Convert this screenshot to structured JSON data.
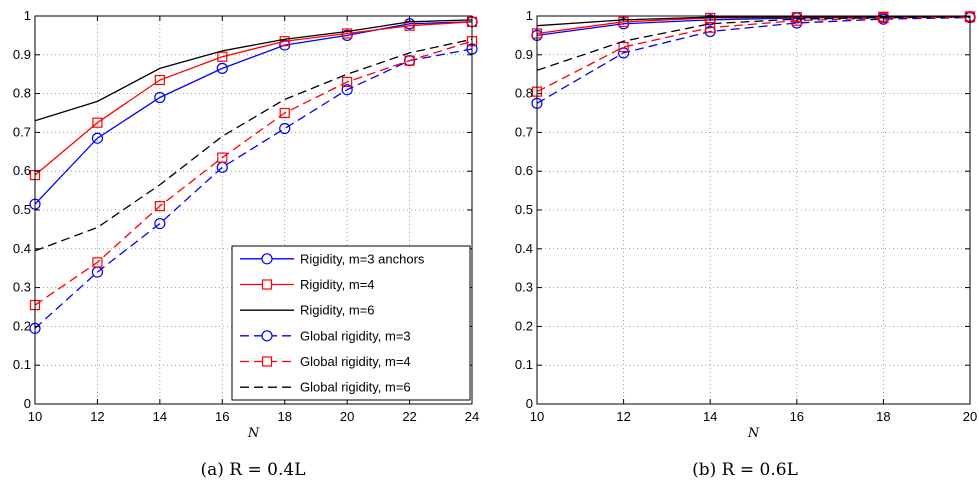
{
  "chart_data": [
    {
      "type": "line",
      "caption": "(a)  R = 0.4L",
      "xlabel": "N",
      "ylabel": "",
      "xlim": [
        10,
        24
      ],
      "ylim": [
        0,
        1
      ],
      "xticks": [
        10,
        12,
        14,
        16,
        18,
        20,
        22,
        24
      ],
      "yticks": [
        0,
        0.1,
        0.2,
        0.3,
        0.4,
        0.5,
        0.6,
        0.7,
        0.8,
        0.9,
        1
      ],
      "grid": true,
      "legend": "bottom-right",
      "x": [
        10,
        12,
        14,
        16,
        18,
        20,
        22,
        24
      ],
      "series": [
        {
          "name": "Rigidity, m=3 anchors",
          "color": "#0000ff",
          "dash": "solid",
          "marker": "circle",
          "values": [
            0.515,
            0.685,
            0.79,
            0.865,
            0.925,
            0.95,
            0.98,
            0.985
          ]
        },
        {
          "name": "Rigidity, m=4",
          "color": "#ff0000",
          "dash": "solid",
          "marker": "square",
          "values": [
            0.59,
            0.725,
            0.835,
            0.895,
            0.935,
            0.955,
            0.975,
            0.985
          ]
        },
        {
          "name": "Rigidity, m=6",
          "color": "#000000",
          "dash": "solid",
          "marker": "none",
          "values": [
            0.73,
            0.78,
            0.865,
            0.91,
            0.94,
            0.96,
            0.985,
            0.99
          ]
        },
        {
          "name": "Global rigidity, m=3",
          "color": "#0000ff",
          "dash": "dashed",
          "marker": "circle",
          "values": [
            0.195,
            0.34,
            0.465,
            0.61,
            0.71,
            0.81,
            0.885,
            0.915
          ]
        },
        {
          "name": "Global rigidity, m=4",
          "color": "#ff0000",
          "dash": "dashed",
          "marker": "square",
          "values": [
            0.255,
            0.365,
            0.51,
            0.635,
            0.75,
            0.83,
            0.885,
            0.935
          ]
        },
        {
          "name": "Global rigidity, m=6",
          "color": "#000000",
          "dash": "dashed",
          "marker": "none",
          "values": [
            0.395,
            0.455,
            0.565,
            0.69,
            0.785,
            0.85,
            0.905,
            0.94
          ]
        }
      ]
    },
    {
      "type": "line",
      "caption": "(b)  R = 0.6L",
      "xlabel": "N",
      "ylabel": "",
      "xlim": [
        10,
        20
      ],
      "ylim": [
        0,
        1
      ],
      "xticks": [
        10,
        12,
        14,
        16,
        18,
        20
      ],
      "yticks": [
        0,
        0.1,
        0.2,
        0.3,
        0.4,
        0.5,
        0.6,
        0.7,
        0.8,
        0.9,
        1
      ],
      "grid": true,
      "legend": "none",
      "x": [
        10,
        12,
        14,
        16,
        18,
        20
      ],
      "series": [
        {
          "name": "Rigidity, m=3 anchors",
          "color": "#0000ff",
          "dash": "solid",
          "marker": "circle",
          "values": [
            0.95,
            0.98,
            0.99,
            0.995,
            0.997,
            0.998
          ]
        },
        {
          "name": "Rigidity, m=4",
          "color": "#ff0000",
          "dash": "solid",
          "marker": "square",
          "values": [
            0.955,
            0.985,
            0.995,
            0.997,
            0.998,
            0.999
          ]
        },
        {
          "name": "Rigidity, m=6",
          "color": "#000000",
          "dash": "solid",
          "marker": "none",
          "values": [
            0.975,
            0.99,
            0.997,
            0.998,
            0.999,
            0.999
          ]
        },
        {
          "name": "Global rigidity, m=3",
          "color": "#0000ff",
          "dash": "dashed",
          "marker": "circle",
          "values": [
            0.775,
            0.905,
            0.96,
            0.982,
            0.992,
            0.996
          ]
        },
        {
          "name": "Global rigidity, m=4",
          "color": "#ff0000",
          "dash": "dashed",
          "marker": "square",
          "values": [
            0.805,
            0.92,
            0.97,
            0.988,
            0.995,
            0.997
          ]
        },
        {
          "name": "Global rigidity, m=6",
          "color": "#000000",
          "dash": "dashed",
          "marker": "none",
          "values": [
            0.86,
            0.935,
            0.98,
            0.992,
            0.996,
            0.998
          ]
        }
      ]
    }
  ]
}
